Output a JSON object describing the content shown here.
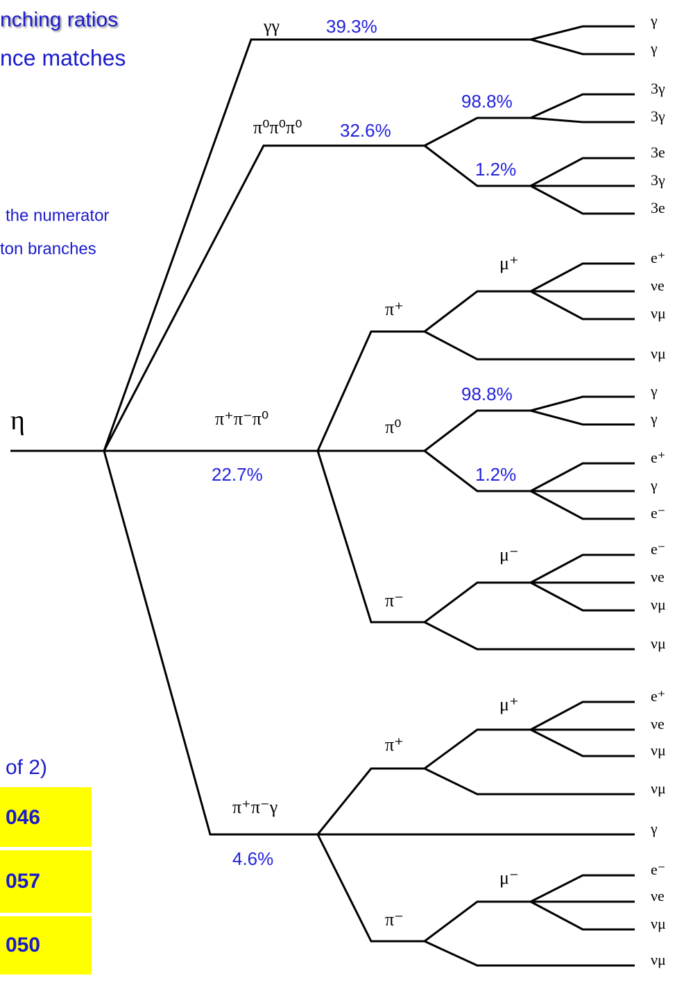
{
  "header": {
    "lines": [
      "nching ratios",
      "nce matches"
    ]
  },
  "note": {
    "lines": [
      "the numerator",
      "ton branches"
    ]
  },
  "fraction": "of 2)",
  "table": {
    "rows": [
      [
        "046"
      ],
      [
        "057"
      ],
      [
        "050"
      ]
    ]
  },
  "tree": {
    "root": "η",
    "labels": [
      "γγ",
      "39.3%",
      "π⁰π⁰π⁰",
      "32.6%",
      "98.8%",
      "1.2%",
      "π⁺π⁻π⁰",
      "22.7%",
      "π⁺",
      "μ⁺",
      "π⁰",
      "98.8%",
      "1.2%",
      "π⁻",
      "μ⁻",
      "π⁺π⁻γ",
      "4.6%",
      "π⁺",
      "μ⁺",
      "π⁻",
      "μ⁻"
    ],
    "final_states": [
      "γ",
      "γ",
      "3γ",
      "3γ",
      "3e",
      "3γ",
      "3e",
      "e⁺",
      "νe",
      "νμ",
      "νμ",
      "γ",
      "γ",
      "e⁺",
      "γ",
      "e⁻",
      "e⁻",
      "νe",
      "νμ",
      "νμ",
      "e⁺",
      "νe",
      "νμ",
      "νμ",
      "γ",
      "e⁻",
      "νe",
      "νμ",
      "νμ"
    ]
  }
}
